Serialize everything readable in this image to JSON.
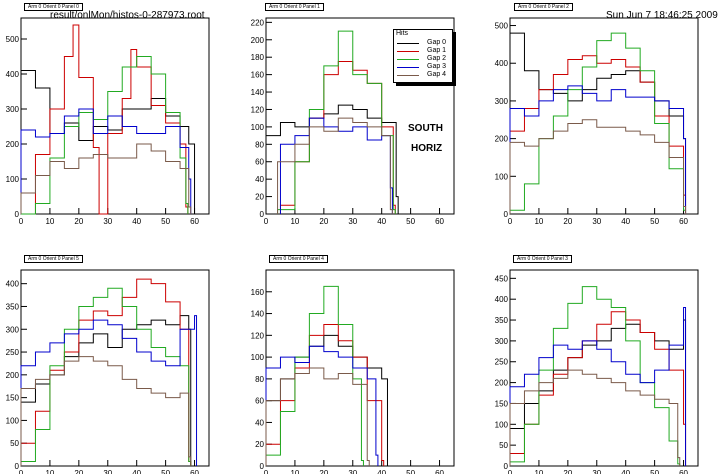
{
  "header": {
    "file_path": "result/onlMon/histos-0-287973.root",
    "timestamp": "Sun Jun  7 18:46:25 2009"
  },
  "labels": {
    "side": "SOUTH",
    "orient": "HORIZ"
  },
  "legend": {
    "title": "Hits",
    "entries": [
      "Gap 0",
      "Gap 1",
      "Gap 2",
      "Gap 3",
      "Gap 4"
    ]
  },
  "colors": {
    "Gap 0": "#000000",
    "Gap 1": "#cc0000",
    "Gap 2": "#22aa22",
    "Gap 3": "#0000cc",
    "Gap 4": "#7a5a4a"
  },
  "chart_data": [
    {
      "type": "line",
      "title": "Arm 0 Orient 0 Panel 0",
      "xlim": [
        0,
        65
      ],
      "ylim": [
        0,
        560
      ],
      "xticks": [
        0,
        10,
        20,
        30,
        40,
        50,
        60
      ],
      "yticks": [
        0,
        100,
        200,
        300,
        400,
        500
      ],
      "series": [
        {
          "name": "Gap 0",
          "x": [
            0,
            5,
            10,
            15,
            20,
            25,
            30,
            35,
            40,
            45,
            50,
            55,
            58,
            60
          ],
          "values": [
            410,
            360,
            230,
            260,
            210,
            250,
            240,
            300,
            300,
            330,
            280,
            250,
            200,
            0
          ]
        },
        {
          "name": "Gap 1",
          "x": [
            0,
            5,
            10,
            15,
            18,
            20,
            25,
            27,
            30,
            35,
            38,
            40,
            45,
            50,
            55,
            57
          ],
          "values": [
            0,
            170,
            300,
            450,
            540,
            390,
            190,
            0,
            230,
            330,
            470,
            420,
            310,
            260,
            200,
            20
          ]
        },
        {
          "name": "Gap 2",
          "x": [
            0,
            5,
            10,
            15,
            20,
            25,
            30,
            35,
            40,
            45,
            50,
            55,
            57
          ],
          "values": [
            0,
            30,
            160,
            250,
            290,
            270,
            350,
            420,
            450,
            400,
            290,
            160,
            30
          ]
        },
        {
          "name": "Gap 3",
          "x": [
            0,
            5,
            10,
            15,
            20,
            25,
            30,
            35,
            40,
            45,
            50,
            55,
            58
          ],
          "values": [
            240,
            220,
            230,
            280,
            300,
            230,
            280,
            250,
            230,
            230,
            250,
            190,
            100
          ]
        },
        {
          "name": "Gap 4",
          "x": [
            0,
            5,
            10,
            15,
            20,
            25,
            30,
            35,
            40,
            45,
            50,
            55,
            58
          ],
          "values": [
            60,
            110,
            150,
            130,
            160,
            170,
            160,
            160,
            200,
            180,
            150,
            130,
            20
          ]
        }
      ]
    },
    {
      "type": "line",
      "title": "Arm 0 Orient 0 Panel 1",
      "xlim": [
        0,
        65
      ],
      "ylim": [
        0,
        225
      ],
      "xticks": [
        0,
        10,
        20,
        30,
        40,
        50,
        60
      ],
      "yticks": [
        0,
        20,
        40,
        60,
        80,
        100,
        120,
        140,
        160,
        180,
        200,
        220
      ],
      "series": [
        {
          "name": "Gap 0",
          "x": [
            0,
            5,
            10,
            15,
            20,
            25,
            30,
            35,
            40,
            45
          ],
          "values": [
            90,
            105,
            100,
            110,
            115,
            125,
            120,
            110,
            105,
            20
          ]
        },
        {
          "name": "Gap 1",
          "x": [
            5,
            10,
            15,
            20,
            25,
            30,
            35,
            40,
            44
          ],
          "values": [
            10,
            60,
            110,
            160,
            175,
            165,
            150,
            100,
            10
          ]
        },
        {
          "name": "Gap 2",
          "x": [
            4,
            10,
            15,
            20,
            25,
            30,
            35,
            40,
            44
          ],
          "values": [
            5,
            60,
            120,
            170,
            210,
            160,
            150,
            90,
            5
          ]
        },
        {
          "name": "Gap 3",
          "x": [
            5,
            10,
            15,
            20,
            25,
            30,
            35,
            40,
            43
          ],
          "values": [
            80,
            90,
            110,
            100,
            95,
            100,
            85,
            90,
            30
          ]
        },
        {
          "name": "Gap 4",
          "x": [
            4,
            10,
            15,
            20,
            25,
            30,
            35,
            40,
            43
          ],
          "values": [
            60,
            80,
            100,
            95,
            110,
            105,
            100,
            90,
            5
          ]
        }
      ]
    },
    {
      "type": "line",
      "title": "Arm 0 Orient 0 Panel 2",
      "xlim": [
        0,
        65
      ],
      "ylim": [
        0,
        520
      ],
      "xticks": [
        0,
        10,
        20,
        30,
        40,
        50,
        60
      ],
      "yticks": [
        0,
        100,
        200,
        300,
        400,
        500
      ],
      "series": [
        {
          "name": "Gap 0",
          "x": [
            0,
            5,
            10,
            15,
            20,
            25,
            30,
            35,
            40,
            45,
            50,
            55,
            60
          ],
          "values": [
            480,
            380,
            330,
            320,
            300,
            330,
            360,
            370,
            380,
            350,
            300,
            260,
            200
          ]
        },
        {
          "name": "Gap 1",
          "x": [
            0,
            5,
            10,
            15,
            20,
            25,
            30,
            35,
            40,
            45,
            50,
            55,
            60
          ],
          "values": [
            220,
            280,
            330,
            370,
            410,
            420,
            400,
            410,
            390,
            350,
            260,
            180,
            50
          ]
        },
        {
          "name": "Gap 2",
          "x": [
            0,
            5,
            10,
            15,
            20,
            25,
            30,
            35,
            40,
            45,
            50,
            55,
            60
          ],
          "values": [
            10,
            80,
            200,
            260,
            330,
            390,
            460,
            480,
            440,
            380,
            240,
            120,
            10
          ]
        },
        {
          "name": "Gap 3",
          "x": [
            0,
            5,
            10,
            15,
            20,
            25,
            30,
            35,
            40,
            45,
            50,
            55,
            60
          ],
          "values": [
            280,
            260,
            300,
            330,
            340,
            320,
            300,
            330,
            310,
            310,
            300,
            280,
            200
          ]
        },
        {
          "name": "Gap 4",
          "x": [
            0,
            5,
            10,
            15,
            20,
            25,
            30,
            35,
            40,
            45,
            50,
            55,
            60
          ],
          "values": [
            190,
            180,
            200,
            220,
            240,
            250,
            230,
            230,
            220,
            210,
            190,
            150,
            20
          ]
        }
      ]
    },
    {
      "type": "line",
      "title": "Arm 0 Orient 0 Panel 5",
      "xlim": [
        0,
        65
      ],
      "ylim": [
        0,
        430
      ],
      "xticks": [
        0,
        10,
        20,
        30,
        40,
        50,
        60
      ],
      "yticks": [
        0,
        50,
        100,
        150,
        200,
        250,
        300,
        350,
        400
      ],
      "series": [
        {
          "name": "Gap 0",
          "x": [
            0,
            5,
            10,
            15,
            20,
            25,
            30,
            35,
            40,
            45,
            50,
            55,
            58
          ],
          "values": [
            140,
            180,
            200,
            240,
            270,
            290,
            260,
            300,
            310,
            320,
            310,
            330,
            300
          ]
        },
        {
          "name": "Gap 1",
          "x": [
            0,
            5,
            10,
            15,
            20,
            25,
            30,
            35,
            40,
            45,
            50,
            55,
            58
          ],
          "values": [
            50,
            120,
            210,
            250,
            320,
            340,
            330,
            370,
            410,
            400,
            360,
            300,
            10
          ]
        },
        {
          "name": "Gap 2",
          "x": [
            0,
            5,
            10,
            15,
            20,
            25,
            30,
            35,
            40,
            45,
            50,
            55,
            58
          ],
          "values": [
            10,
            80,
            220,
            300,
            350,
            370,
            390,
            350,
            300,
            260,
            240,
            220,
            10
          ]
        },
        {
          "name": "Gap 3",
          "x": [
            0,
            5,
            10,
            15,
            20,
            25,
            30,
            35,
            40,
            45,
            50,
            55,
            60
          ],
          "values": [
            220,
            250,
            270,
            290,
            300,
            320,
            310,
            280,
            250,
            230,
            220,
            300,
            330
          ]
        },
        {
          "name": "Gap 4",
          "x": [
            0,
            5,
            10,
            15,
            20,
            25,
            30,
            35,
            40,
            45,
            50,
            55,
            58
          ],
          "values": [
            170,
            190,
            200,
            230,
            240,
            230,
            220,
            190,
            170,
            160,
            150,
            160,
            20
          ]
        }
      ]
    },
    {
      "type": "line",
      "title": "Arm 0 Orient 0 Panel 4",
      "xlim": [
        0,
        65
      ],
      "ylim": [
        0,
        180
      ],
      "xticks": [
        0,
        10,
        20,
        30,
        40,
        50,
        60
      ],
      "yticks": [
        0,
        20,
        40,
        60,
        80,
        100,
        120,
        140,
        160
      ],
      "series": [
        {
          "name": "Gap 0",
          "x": [
            0,
            5,
            10,
            15,
            20,
            25,
            30,
            35,
            40,
            42
          ],
          "values": [
            60,
            80,
            100,
            110,
            120,
            110,
            100,
            90,
            80,
            0
          ]
        },
        {
          "name": "Gap 1",
          "x": [
            0,
            5,
            10,
            15,
            20,
            25,
            30,
            35,
            40
          ],
          "values": [
            20,
            60,
            90,
            120,
            130,
            115,
            100,
            60,
            5
          ]
        },
        {
          "name": "Gap 2",
          "x": [
            0,
            5,
            10,
            15,
            20,
            25,
            30,
            33
          ],
          "values": [
            10,
            50,
            100,
            140,
            165,
            130,
            80,
            5
          ]
        },
        {
          "name": "Gap 3",
          "x": [
            0,
            5,
            10,
            15,
            20,
            25,
            30,
            35,
            38
          ],
          "values": [
            90,
            100,
            95,
            110,
            105,
            100,
            90,
            80,
            10
          ]
        },
        {
          "name": "Gap 4",
          "x": [
            0,
            5,
            10,
            15,
            20,
            25,
            30,
            35
          ],
          "values": [
            60,
            80,
            85,
            90,
            80,
            85,
            75,
            5
          ]
        }
      ]
    },
    {
      "type": "line",
      "title": "Arm 0 Orient 0 Panel 3",
      "xlim": [
        0,
        65
      ],
      "ylim": [
        0,
        470
      ],
      "xticks": [
        0,
        10,
        20,
        30,
        40,
        50,
        60
      ],
      "yticks": [
        0,
        50,
        100,
        150,
        200,
        250,
        300,
        350,
        400,
        450
      ],
      "series": [
        {
          "name": "Gap 0",
          "x": [
            0,
            5,
            10,
            15,
            20,
            25,
            30,
            35,
            40,
            45,
            50,
            55,
            60
          ],
          "values": [
            90,
            150,
            180,
            230,
            260,
            290,
            300,
            330,
            340,
            320,
            300,
            280,
            350
          ]
        },
        {
          "name": "Gap 1",
          "x": [
            0,
            5,
            10,
            15,
            20,
            25,
            30,
            35,
            40,
            45,
            50,
            55,
            60
          ],
          "values": [
            30,
            100,
            170,
            220,
            260,
            300,
            340,
            370,
            350,
            320,
            280,
            230,
            100
          ]
        },
        {
          "name": "Gap 2",
          "x": [
            0,
            5,
            10,
            15,
            20,
            25,
            30,
            35,
            40,
            45,
            50,
            55,
            58
          ],
          "values": [
            10,
            100,
            230,
            330,
            390,
            430,
            400,
            380,
            300,
            200,
            140,
            60,
            5
          ]
        },
        {
          "name": "Gap 3",
          "x": [
            0,
            5,
            10,
            15,
            20,
            25,
            30,
            35,
            40,
            45,
            50,
            55,
            60
          ],
          "values": [
            190,
            220,
            260,
            290,
            280,
            300,
            280,
            250,
            220,
            200,
            230,
            290,
            380
          ]
        },
        {
          "name": "Gap 4",
          "x": [
            0,
            5,
            10,
            15,
            20,
            25,
            30,
            35,
            40,
            45,
            50,
            55,
            58
          ],
          "values": [
            150,
            180,
            200,
            210,
            230,
            220,
            210,
            200,
            180,
            170,
            160,
            150,
            20
          ]
        }
      ]
    }
  ]
}
